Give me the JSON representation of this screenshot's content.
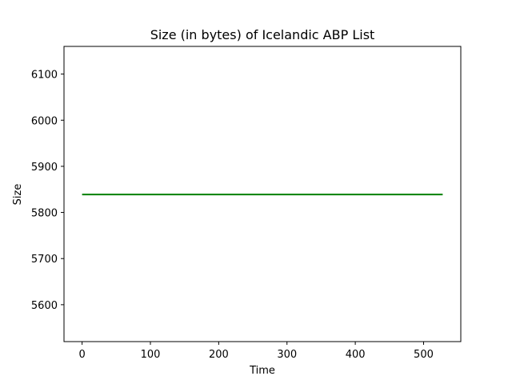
{
  "chart_data": {
    "type": "line",
    "title": "Size (in bytes) of Icelandic ABP List",
    "xlabel": "Time",
    "ylabel": "Size",
    "xlim": [
      -26.5,
      554.5
    ],
    "ylim": [
      5520,
      6160
    ],
    "xticks": [
      0,
      100,
      200,
      300,
      400,
      500
    ],
    "yticks": [
      5600,
      5700,
      5800,
      5900,
      6000,
      6100
    ],
    "grid": false,
    "series": [
      {
        "color": "#008000",
        "x": [
          0,
          528
        ],
        "y": [
          5839,
          5839
        ]
      }
    ]
  }
}
